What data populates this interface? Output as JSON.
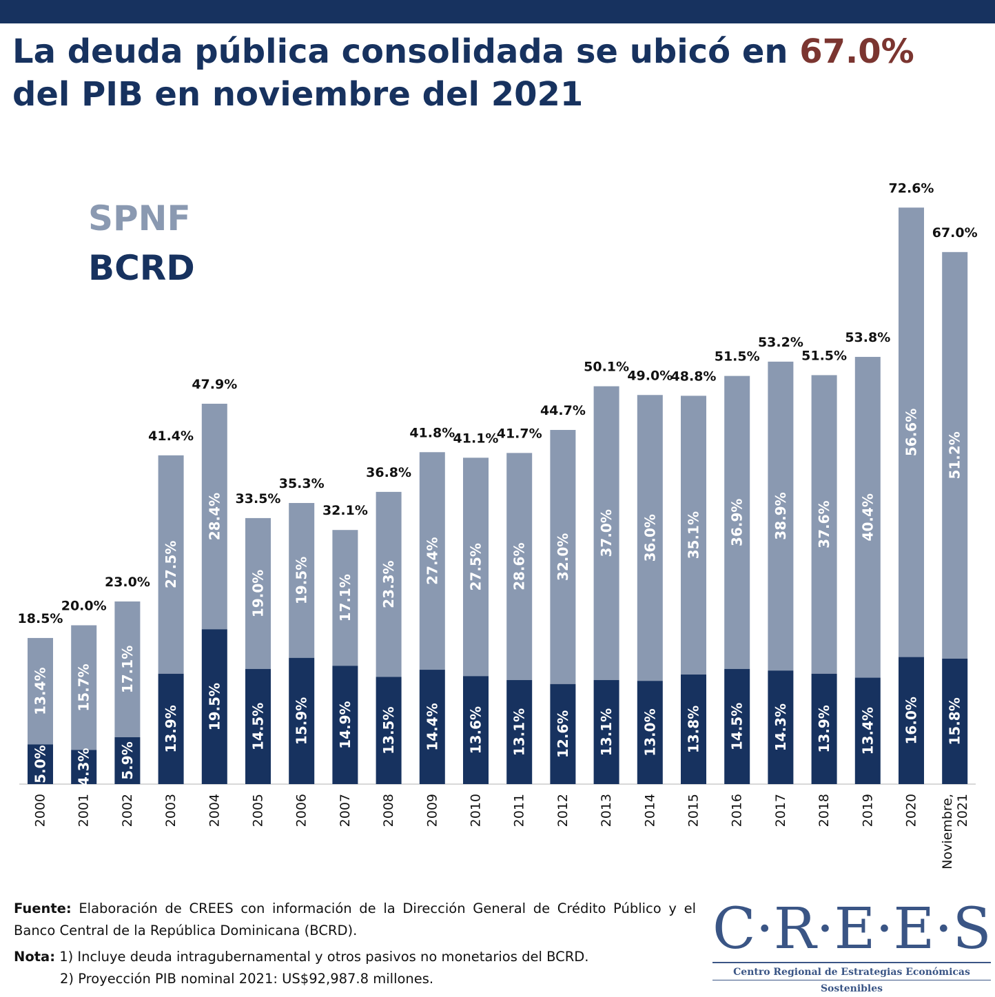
{
  "header": {
    "title_part1": "La deuda pública consolidada se ubicó en ",
    "title_highlight": "67.0%",
    "title_part2": "del PIB en noviembre del 2021"
  },
  "colors": {
    "header_band": "#17325f",
    "title": "#17325f",
    "highlight": "#7b3530",
    "spnf": "#8a99b1",
    "bcrd": "#17325f"
  },
  "legend": {
    "spnf": "SPNF",
    "bcrd": "BCRD"
  },
  "chart_data": {
    "type": "bar",
    "stacked": true,
    "categories": [
      "2000",
      "2001",
      "2002",
      "2003",
      "2004",
      "2005",
      "2006",
      "2007",
      "2008",
      "2009",
      "2010",
      "2011",
      "2012",
      "2013",
      "2014",
      "2015",
      "2016",
      "2017",
      "2018",
      "2019",
      "2020",
      "Noviembre, 2021"
    ],
    "series": [
      {
        "name": "BCRD",
        "values": [
          5.0,
          4.3,
          5.9,
          13.9,
          19.5,
          14.5,
          15.9,
          14.9,
          13.5,
          14.4,
          13.6,
          13.1,
          12.6,
          13.1,
          13.0,
          13.8,
          14.5,
          14.3,
          13.9,
          13.4,
          16.0,
          15.8
        ]
      },
      {
        "name": "SPNF",
        "values": [
          13.4,
          15.7,
          17.1,
          27.5,
          28.4,
          19.0,
          19.5,
          17.1,
          23.3,
          27.4,
          27.5,
          28.6,
          32.0,
          37.0,
          36.0,
          35.1,
          36.9,
          38.9,
          37.6,
          40.4,
          56.6,
          51.2
        ]
      }
    ],
    "totals": [
      18.5,
      20.0,
      23.0,
      41.4,
      47.9,
      33.5,
      35.3,
      32.1,
      36.8,
      41.8,
      41.1,
      41.7,
      44.7,
      50.1,
      49.0,
      48.8,
      51.5,
      53.2,
      51.5,
      53.8,
      72.6,
      67.0
    ],
    "value_suffix": "%",
    "ylim": [
      0,
      78
    ],
    "xlabel": "",
    "ylabel": "",
    "legend_position": "top-left",
    "grid": false
  },
  "footer": {
    "fuente_label": "Fuente:",
    "fuente_text": " Elaboración de CREES con información de la Dirección General de Crédito Público y el Banco Central de la República Dominicana (BCRD).",
    "nota_label": "Nota:",
    "nota_text": " 1) Incluye deuda intragubernamental y otros pasivos no monetarios del BCRD.",
    "nota_text2": "2) Proyección PIB nominal 2021: US$92,987.8 millones."
  },
  "logo": {
    "text": "C·R·E·E·S",
    "subtitle": "Centro Regional de Estrategias Económicas Sostenibles"
  }
}
